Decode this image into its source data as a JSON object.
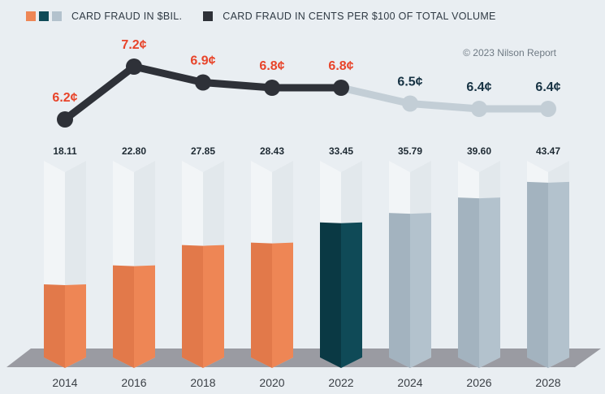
{
  "legend": {
    "bars_label": "CARD FRAUD IN $BIL.",
    "line_label": "CARD FRAUD IN CENTS PER $100 OF TOTAL VOLUME",
    "bar_swatch_colors": [
      "#ee8655",
      "#0f4a57",
      "#b3c2cd"
    ],
    "line_swatch_color": "#2e3138"
  },
  "source": "© 2023 Nilson Report",
  "chart_data": {
    "type": "bar",
    "categories": [
      "2014",
      "2016",
      "2018",
      "2020",
      "2022",
      "2024",
      "2026",
      "2028"
    ],
    "series": [
      {
        "name": "CARD FRAUD IN $BIL.",
        "type": "bar",
        "values": [
          18.11,
          22.8,
          27.85,
          28.43,
          33.45,
          35.79,
          39.6,
          43.47
        ],
        "labels": [
          "18.11",
          "22.80",
          "27.85",
          "28.43",
          "33.45",
          "35.79",
          "39.60",
          "43.47"
        ]
      },
      {
        "name": "CARD FRAUD IN CENTS PER $100 OF TOTAL VOLUME",
        "type": "line",
        "values": [
          6.2,
          7.2,
          6.9,
          6.8,
          6.8,
          6.5,
          6.4,
          6.4
        ],
        "labels": [
          "6.2¢",
          "7.2¢",
          "6.9¢",
          "6.8¢",
          "6.8¢",
          "6.5¢",
          "6.4¢",
          "6.4¢"
        ]
      }
    ],
    "actual_through": "2022",
    "projected_from": "2024",
    "colors": {
      "bar_actual": "#ee8655",
      "bar_actual_shade": "#e2794a",
      "bar_latest": "#0f4a57",
      "bar_latest_shade": "#0a3944",
      "bar_projected": "#b3c2cd",
      "bar_projected_shade": "#a3b3bf",
      "line_actual": "#2e3138",
      "line_projected": "#c3ced6",
      "label_actual": "#e8442a",
      "label_projected": "#173344",
      "value_label": "#1e2a33",
      "year_label": "#3a3f45",
      "floor": "#9a9ba2"
    }
  }
}
